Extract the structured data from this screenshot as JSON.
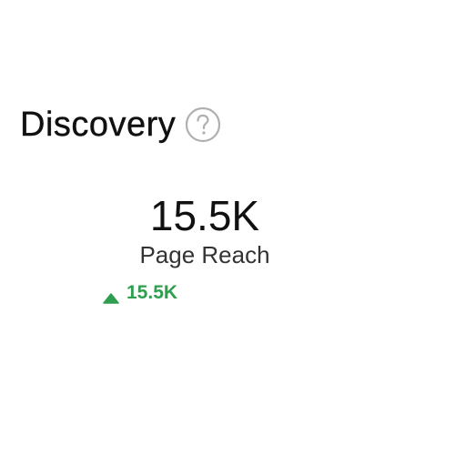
{
  "header": {
    "title": "Discovery",
    "help_icon": "question-circle-icon"
  },
  "metric": {
    "value": "15.5K",
    "label": "Page Reach",
    "change": {
      "direction": "up",
      "icon": "triangle-up-icon",
      "value": "15.5K",
      "color": "#2e9e4f"
    }
  },
  "colors": {
    "text_primary": "#111111",
    "icon_gray": "#b0b0b0",
    "positive": "#2e9e4f"
  }
}
